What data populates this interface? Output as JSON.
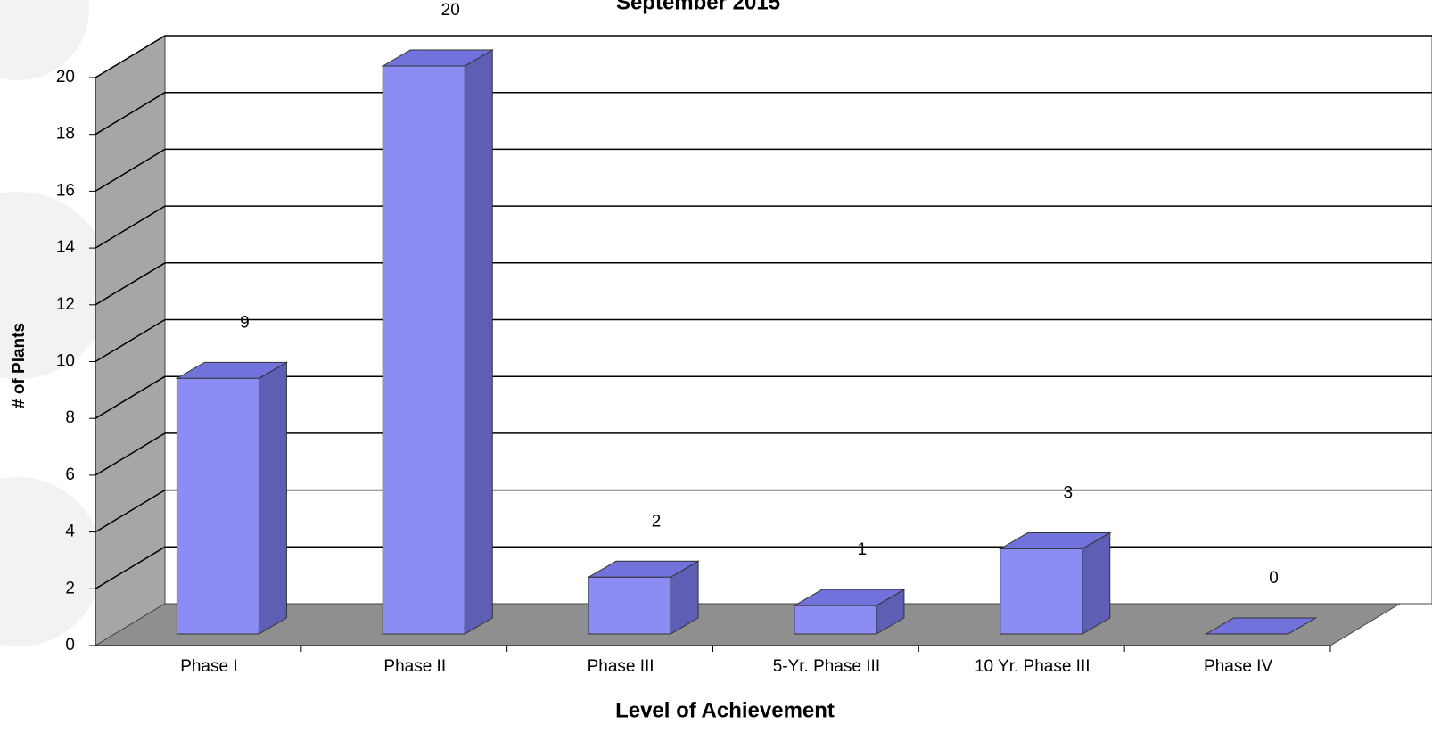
{
  "chart_data": {
    "type": "bar",
    "title": "September 2015",
    "xlabel": "Level of Achievement",
    "ylabel": "# of Plants",
    "categories": [
      "Phase I",
      "Phase II",
      "Phase III",
      "5-Yr. Phase III",
      "10 Yr. Phase III",
      "Phase IV"
    ],
    "values": [
      9,
      20,
      2,
      1,
      3,
      0
    ],
    "color": "#8c8cf5",
    "ylim": [
      0,
      20
    ],
    "yticks": [
      0,
      2,
      4,
      6,
      8,
      10,
      12,
      14,
      16,
      18,
      20
    ],
    "grid": true
  }
}
